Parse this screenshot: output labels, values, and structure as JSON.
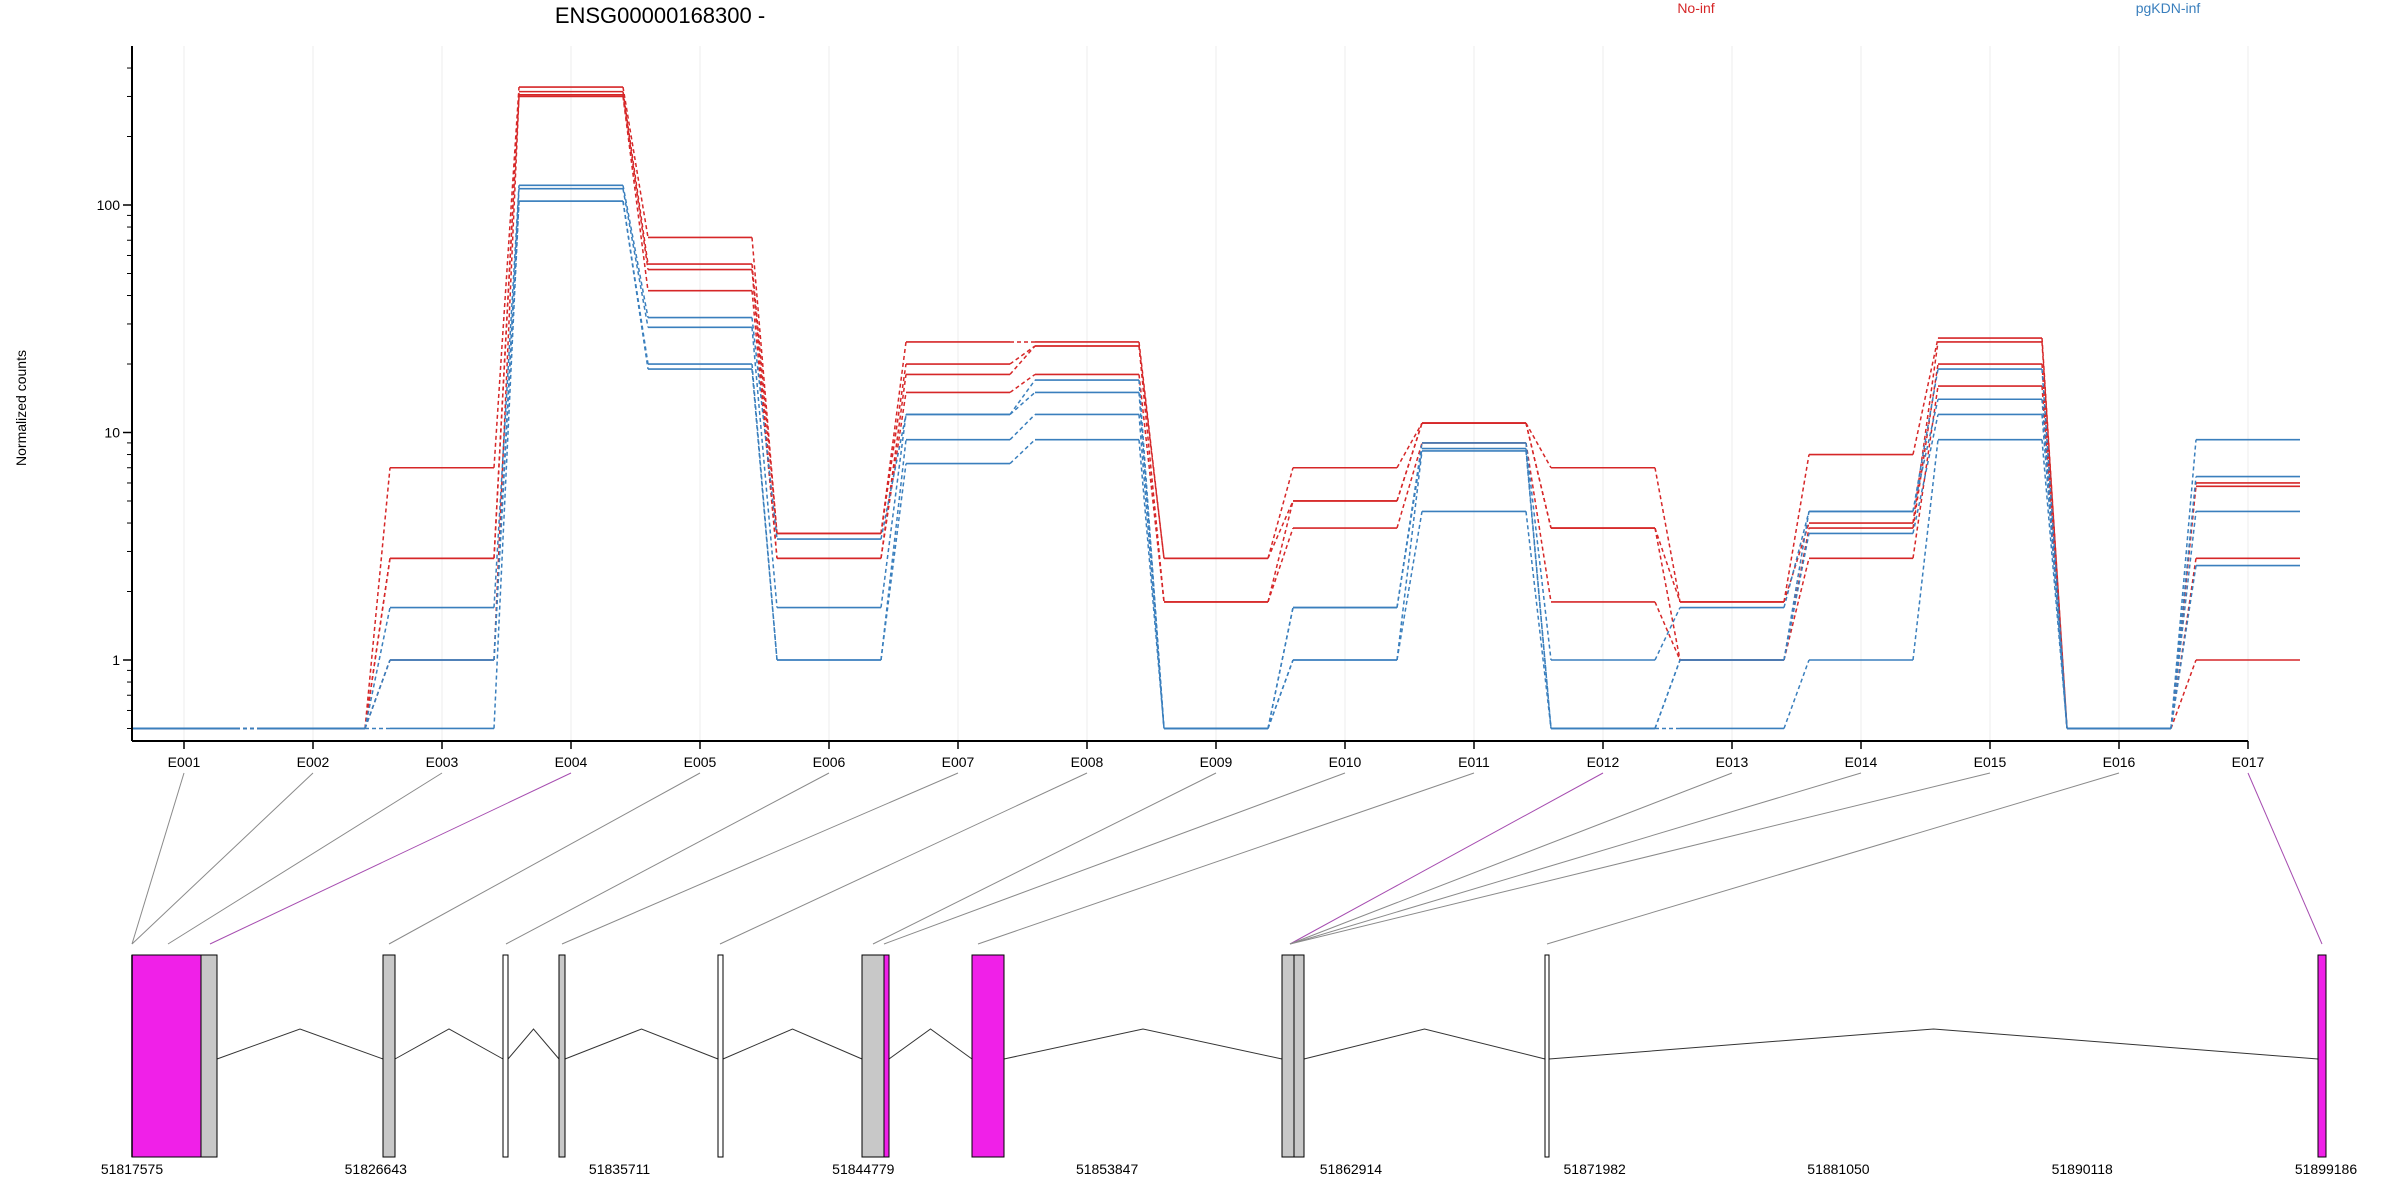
{
  "chart_data": {
    "type": "line",
    "title": "ENSG00000168300 -",
    "ylabel": "Normalized counts",
    "xlabel": "",
    "y_scale": "log",
    "ylim": [
      0.5,
      400
    ],
    "y_ticks": [
      {
        "value": 1,
        "label": "1"
      },
      {
        "value": 10,
        "label": "10"
      },
      {
        "value": 100,
        "label": "100"
      }
    ],
    "categories": [
      "E001",
      "E002",
      "E003",
      "E004",
      "E005",
      "E006",
      "E007",
      "E008",
      "E009",
      "E010",
      "E011",
      "E012",
      "E013",
      "E014",
      "E015",
      "E016",
      "E017"
    ],
    "legend": [
      {
        "name": "No-inf",
        "color": "#d62728"
      },
      {
        "name": "pgKDN-inf",
        "color": "#3a7fbd"
      }
    ],
    "series": [
      {
        "group": "No-inf",
        "values": [
          0.5,
          0.5,
          7.0,
          330,
          72,
          3.6,
          25,
          25,
          2.8,
          7.0,
          11,
          7.0,
          1.8,
          8.0,
          26,
          0.5,
          6.0
        ]
      },
      {
        "group": "No-inf",
        "values": [
          0.5,
          0.5,
          2.8,
          315,
          55,
          3.6,
          20,
          24,
          2.8,
          5.0,
          11,
          3.8,
          1.8,
          4.0,
          25,
          0.5,
          5.8
        ]
      },
      {
        "group": "No-inf",
        "values": [
          0.5,
          0.5,
          2.8,
          305,
          52,
          2.8,
          18,
          24,
          1.8,
          5.0,
          11,
          3.8,
          1.0,
          3.8,
          20,
          0.5,
          2.8
        ]
      },
      {
        "group": "No-inf",
        "values": [
          0.5,
          0.5,
          1.0,
          300,
          42,
          2.8,
          15,
          18,
          1.8,
          3.8,
          9,
          1.8,
          1.0,
          2.8,
          16,
          0.5,
          1.0
        ]
      },
      {
        "group": "pgKDN-inf",
        "values": [
          0.5,
          0.5,
          1.7,
          122,
          32,
          3.4,
          12,
          17,
          0.5,
          1.7,
          9,
          1.0,
          1.7,
          4.5,
          19,
          0.5,
          9.3
        ]
      },
      {
        "group": "pgKDN-inf",
        "values": [
          0.5,
          0.5,
          1.0,
          118,
          29,
          1.7,
          12,
          15,
          0.5,
          1.7,
          8.5,
          0.5,
          1.0,
          4.5,
          14,
          0.5,
          6.4
        ]
      },
      {
        "group": "pgKDN-inf",
        "values": [
          0.5,
          0.5,
          1.0,
          104,
          20,
          1.0,
          9.3,
          12,
          0.5,
          1.0,
          8.3,
          0.5,
          1.0,
          3.6,
          12,
          0.5,
          4.5
        ]
      },
      {
        "group": "pgKDN-inf",
        "values": [
          0.5,
          0.5,
          0.5,
          104,
          19,
          1.0,
          7.3,
          9.3,
          0.5,
          1.0,
          4.5,
          0.5,
          0.5,
          1.0,
          9.3,
          0.5,
          2.6
        ]
      }
    ],
    "gene_model": {
      "coord_ticks": [
        "51817575",
        "51826643",
        "51835711",
        "51844779",
        "51853847",
        "51862914",
        "51871982",
        "51881050",
        "51890118",
        "51899186"
      ],
      "exon_highlight": [
        false,
        false,
        false,
        true,
        false,
        false,
        false,
        false,
        false,
        false,
        false,
        true,
        false,
        false,
        false,
        false,
        true
      ],
      "highlight_color": "#f020e8",
      "exon_color": "#c8c8c8"
    },
    "grid": true,
    "legend_placement": "top"
  }
}
